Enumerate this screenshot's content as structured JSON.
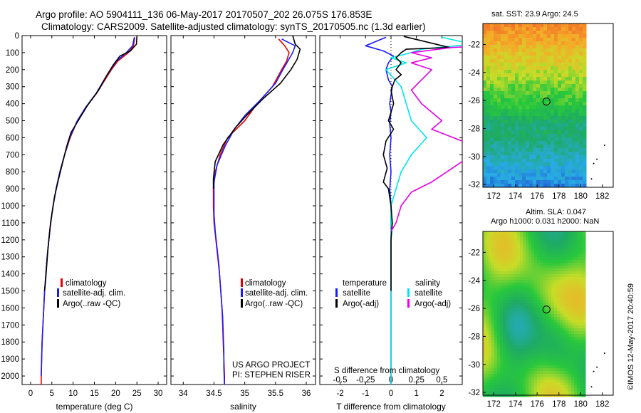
{
  "header": {
    "line1": "Argo profile: AO 5904111_136 06-May-2017 20170507_202 26.075S 176.853E",
    "line2": "Climatology: CARS2009. Satellite-adjusted climatology: synTS_20170505.nc (1.3d earlier)"
  },
  "maps": {
    "sst_title": "sat. SST: 23.9 Argo: 24.5",
    "sla_title_1": "Altim. SLA: 0.047",
    "sla_title_2": "Argo h1000: 0.031 h2000: NaN",
    "lat_ticks": [
      "-22",
      "-24",
      "-26",
      "-28",
      "-30",
      "-32"
    ],
    "lon_ticks": [
      "172",
      "174",
      "176",
      "178",
      "180",
      "182"
    ],
    "argo_marker": {
      "lon": 176.853,
      "lat": -26.075
    }
  },
  "stamp": "©IMOS 12-May-2017 20:40:59",
  "colors": {
    "climatology": "#e60000",
    "satellite": "#1a1aff",
    "argo": "#000000",
    "sal_satellite": "#00e6e6",
    "sal_argo": "#e600e6"
  },
  "annotations": {
    "project_1": "US ARGO PROJECT",
    "project_2": "PI: STEPHEN RISER"
  },
  "chart_data": [
    {
      "type": "line",
      "xlabel": "temperature (deg C)",
      "ylabel": "",
      "xlim": [
        -2,
        32
      ],
      "ylim": [
        2050,
        0
      ],
      "xticks": [
        0,
        5,
        10,
        15,
        20,
        25,
        30
      ],
      "yticks": [
        0,
        100,
        200,
        300,
        400,
        500,
        600,
        700,
        800,
        900,
        1000,
        1100,
        1200,
        1300,
        1400,
        1500,
        1600,
        1700,
        1800,
        1900,
        2000
      ],
      "legend": [
        "climatology",
        "satellite-adj. clim.",
        "Argo(..raw -QC)"
      ],
      "series": [
        {
          "name": "climatology",
          "color": "#e60000",
          "points": [
            [
              24.5,
              10
            ],
            [
              24.2,
              60
            ],
            [
              23.0,
              100
            ],
            [
              20.5,
              150
            ],
            [
              19.0,
              200
            ],
            [
              17.5,
              260
            ],
            [
              15.5,
              340
            ],
            [
              13.0,
              420
            ],
            [
              11.0,
              500
            ],
            [
              9.3,
              600
            ],
            [
              8.0,
              700
            ],
            [
              6.9,
              800
            ],
            [
              6.0,
              900
            ],
            [
              5.3,
              1000
            ],
            [
              4.7,
              1100
            ],
            [
              4.3,
              1200
            ],
            [
              3.9,
              1300
            ],
            [
              3.6,
              1400
            ],
            [
              3.3,
              1500
            ],
            [
              3.1,
              1600
            ],
            [
              2.9,
              1700
            ],
            [
              2.7,
              1800
            ],
            [
              2.6,
              1900
            ],
            [
              2.5,
              2000
            ],
            [
              2.5,
              2050
            ]
          ]
        },
        {
          "name": "satellite-adj. clim.",
          "color": "#1a1aff",
          "points": [
            [
              24.4,
              10
            ],
            [
              24.0,
              60
            ],
            [
              22.5,
              100
            ],
            [
              20.2,
              150
            ],
            [
              18.8,
              200
            ],
            [
              17.3,
              260
            ],
            [
              15.4,
              340
            ],
            [
              13.0,
              420
            ],
            [
              11.0,
              500
            ],
            [
              9.2,
              600
            ],
            [
              8.0,
              700
            ],
            [
              6.9,
              800
            ],
            [
              6.0,
              900
            ],
            [
              5.3,
              1000
            ],
            [
              4.7,
              1100
            ],
            [
              4.3,
              1200
            ],
            [
              3.9,
              1300
            ],
            [
              3.6,
              1400
            ],
            [
              3.3,
              1500
            ],
            [
              3.1,
              1600
            ],
            [
              2.9,
              1700
            ],
            [
              2.7,
              1800
            ],
            [
              2.6,
              1900
            ],
            [
              2.5,
              2000
            ]
          ]
        },
        {
          "name": "Argo(..raw -QC)",
          "color": "#000000",
          "points": [
            [
              25.0,
              5
            ],
            [
              24.9,
              50
            ],
            [
              23.5,
              90
            ],
            [
              21.0,
              120
            ],
            [
              19.5,
              170
            ],
            [
              18.0,
              230
            ],
            [
              16.0,
              320
            ],
            [
              13.4,
              410
            ],
            [
              11.2,
              500
            ],
            [
              9.5,
              570
            ],
            [
              8.5,
              650
            ],
            [
              7.5,
              750
            ],
            [
              6.5,
              850
            ],
            [
              5.6,
              950
            ],
            [
              5.0,
              1050
            ],
            [
              4.5,
              1150
            ],
            [
              4.1,
              1250
            ],
            [
              3.8,
              1350
            ],
            [
              3.5,
              1450
            ],
            [
              3.3,
              1500
            ]
          ]
        }
      ]
    },
    {
      "type": "line",
      "xlabel": "salinity",
      "ylabel": "",
      "xlim": [
        33.8,
        36.15
      ],
      "ylim": [
        2050,
        0
      ],
      "xticks": [
        34,
        34.5,
        35,
        35.5,
        36
      ],
      "legend": [
        "climatology",
        "satellite-adj. clim.",
        "Argo(..raw -QC)"
      ],
      "series": [
        {
          "name": "climatology",
          "color": "#e60000",
          "points": [
            [
              35.55,
              20
            ],
            [
              35.65,
              60
            ],
            [
              35.72,
              100
            ],
            [
              35.68,
              150
            ],
            [
              35.6,
              200
            ],
            [
              35.45,
              300
            ],
            [
              35.2,
              400
            ],
            [
              35.0,
              500
            ],
            [
              34.72,
              600
            ],
            [
              34.6,
              700
            ],
            [
              34.52,
              800
            ],
            [
              34.49,
              900
            ],
            [
              34.49,
              1000
            ],
            [
              34.5,
              1100
            ],
            [
              34.53,
              1200
            ],
            [
              34.56,
              1300
            ],
            [
              34.59,
              1400
            ],
            [
              34.61,
              1500
            ],
            [
              34.63,
              1600
            ],
            [
              34.64,
              1700
            ],
            [
              34.65,
              1800
            ],
            [
              34.66,
              1900
            ],
            [
              34.67,
              2000
            ],
            [
              34.67,
              2050
            ]
          ]
        },
        {
          "name": "satellite-adj. clim.",
          "color": "#1a1aff",
          "points": [
            [
              35.6,
              20
            ],
            [
              35.82,
              60
            ],
            [
              35.78,
              100
            ],
            [
              35.7,
              150
            ],
            [
              35.62,
              200
            ],
            [
              35.5,
              280
            ],
            [
              35.25,
              380
            ],
            [
              35.0,
              470
            ],
            [
              34.83,
              550
            ],
            [
              34.68,
              650
            ],
            [
              34.55,
              760
            ],
            [
              34.5,
              860
            ],
            [
              34.5,
              950
            ],
            [
              34.5,
              1050
            ],
            [
              34.52,
              1150
            ],
            [
              34.55,
              1250
            ],
            [
              34.58,
              1350
            ],
            [
              34.6,
              1450
            ],
            [
              34.62,
              1550
            ],
            [
              34.64,
              1650
            ],
            [
              34.65,
              1750
            ],
            [
              34.66,
              1850
            ],
            [
              34.66,
              1950
            ],
            [
              34.67,
              2050
            ]
          ]
        },
        {
          "name": "Argo(..raw -QC)",
          "color": "#000000",
          "points": [
            [
              35.78,
              0
            ],
            [
              35.82,
              50
            ],
            [
              35.9,
              80
            ],
            [
              35.85,
              140
            ],
            [
              35.75,
              200
            ],
            [
              35.58,
              280
            ],
            [
              35.3,
              370
            ],
            [
              35.05,
              460
            ],
            [
              34.85,
              540
            ],
            [
              34.65,
              640
            ],
            [
              34.52,
              740
            ],
            [
              34.49,
              840
            ],
            [
              34.49,
              900
            ]
          ]
        }
      ]
    },
    {
      "type": "line",
      "xlabel": "T difference from climatology",
      "title2": "S difference from climatology",
      "xlim": [
        -2.8,
        2.8
      ],
      "ylim": [
        2050,
        0
      ],
      "xticks": [
        -2,
        -1,
        0,
        1,
        2
      ],
      "xticks2": [
        -0.5,
        -0.25,
        0,
        0.25,
        0.5
      ],
      "legend_temperature": [
        "temperature",
        "satellite",
        "Argo(-adj)"
      ],
      "legend_salinity": [
        "salinity",
        "satellite",
        "Argo(-adj)"
      ],
      "series": [
        {
          "name": "temperature satellite",
          "color": "#1a1aff",
          "points": [
            [
              -0.2,
              10
            ],
            [
              -1.0,
              60
            ],
            [
              -0.3,
              90
            ],
            [
              0.1,
              120
            ],
            [
              -0.1,
              160
            ],
            [
              -0.2,
              200
            ],
            [
              -0.1,
              260
            ],
            [
              0.05,
              300
            ],
            [
              -0.05,
              400
            ],
            [
              0,
              450
            ],
            [
              -0.05,
              520
            ],
            [
              0,
              600
            ],
            [
              -0.05,
              700
            ],
            [
              0,
              800
            ],
            [
              -0.05,
              900
            ],
            [
              0,
              1000
            ],
            [
              0,
              1100
            ],
            [
              0,
              1300
            ],
            [
              0,
              1500
            ],
            [
              0,
              1700
            ],
            [
              0,
              1900
            ],
            [
              0,
              2050
            ]
          ]
        },
        {
          "name": "salinity satellite",
          "color": "#00e6e6",
          "points": [
            [
              0.5,
              10
            ],
            [
              0.8,
              50
            ],
            [
              0.3,
              80
            ],
            [
              0.2,
              100
            ],
            [
              0.0,
              130
            ],
            [
              0.15,
              160
            ],
            [
              -0.05,
              200
            ],
            [
              0.1,
              300
            ],
            [
              0.15,
              400
            ],
            [
              0.2,
              500
            ],
            [
              0.35,
              600
            ],
            [
              0.2,
              700
            ],
            [
              0.1,
              800
            ],
            [
              0.05,
              900
            ],
            [
              0.0,
              1000
            ],
            [
              0.0,
              1200
            ],
            [
              0.0,
              1400
            ],
            [
              0.0,
              1600
            ],
            [
              0.0,
              1800
            ],
            [
              0.0,
              2050
            ]
          ]
        },
        {
          "name": "temperature Argo(-adj)",
          "color": "#000000",
          "points": [
            [
              0.5,
              5
            ],
            [
              1.2,
              30
            ],
            [
              2.3,
              70
            ],
            [
              0.6,
              80
            ],
            [
              0.4,
              100
            ],
            [
              0.2,
              130
            ],
            [
              0.4,
              160
            ],
            [
              0.2,
              200
            ],
            [
              0.4,
              230
            ],
            [
              0.15,
              260
            ],
            [
              0.0,
              320
            ],
            [
              0.1,
              400
            ],
            [
              0.0,
              450
            ],
            [
              -0.1,
              500
            ],
            [
              0.1,
              550
            ],
            [
              -0.2,
              620
            ],
            [
              -0.3,
              700
            ],
            [
              -0.15,
              780
            ],
            [
              -0.3,
              860
            ],
            [
              -0.1,
              900
            ],
            [
              0.0,
              1000
            ],
            [
              0.05,
              1100
            ],
            [
              0.0,
              1200
            ],
            [
              0.0,
              1300
            ],
            [
              0.0,
              1400
            ],
            [
              0.0,
              1500
            ]
          ]
        },
        {
          "name": "salinity Argo(-adj)",
          "color": "#e600e6",
          "points": [
            [
              1.2,
              5
            ],
            [
              1.8,
              30
            ],
            [
              0.6,
              70
            ],
            [
              0.2,
              100
            ],
            [
              0.4,
              130
            ],
            [
              0.2,
              160
            ],
            [
              0.4,
              200
            ],
            [
              0.3,
              260
            ],
            [
              0.2,
              320
            ],
            [
              0.3,
              400
            ],
            [
              0.5,
              500
            ],
            [
              0.4,
              550
            ],
            [
              0.7,
              620
            ],
            [
              0.8,
              700
            ],
            [
              0.6,
              780
            ],
            [
              0.4,
              860
            ],
            [
              0.2,
              920
            ],
            [
              0.1,
              1000
            ],
            [
              0.05,
              1100
            ],
            [
              0.0,
              1150
            ]
          ]
        }
      ]
    }
  ]
}
